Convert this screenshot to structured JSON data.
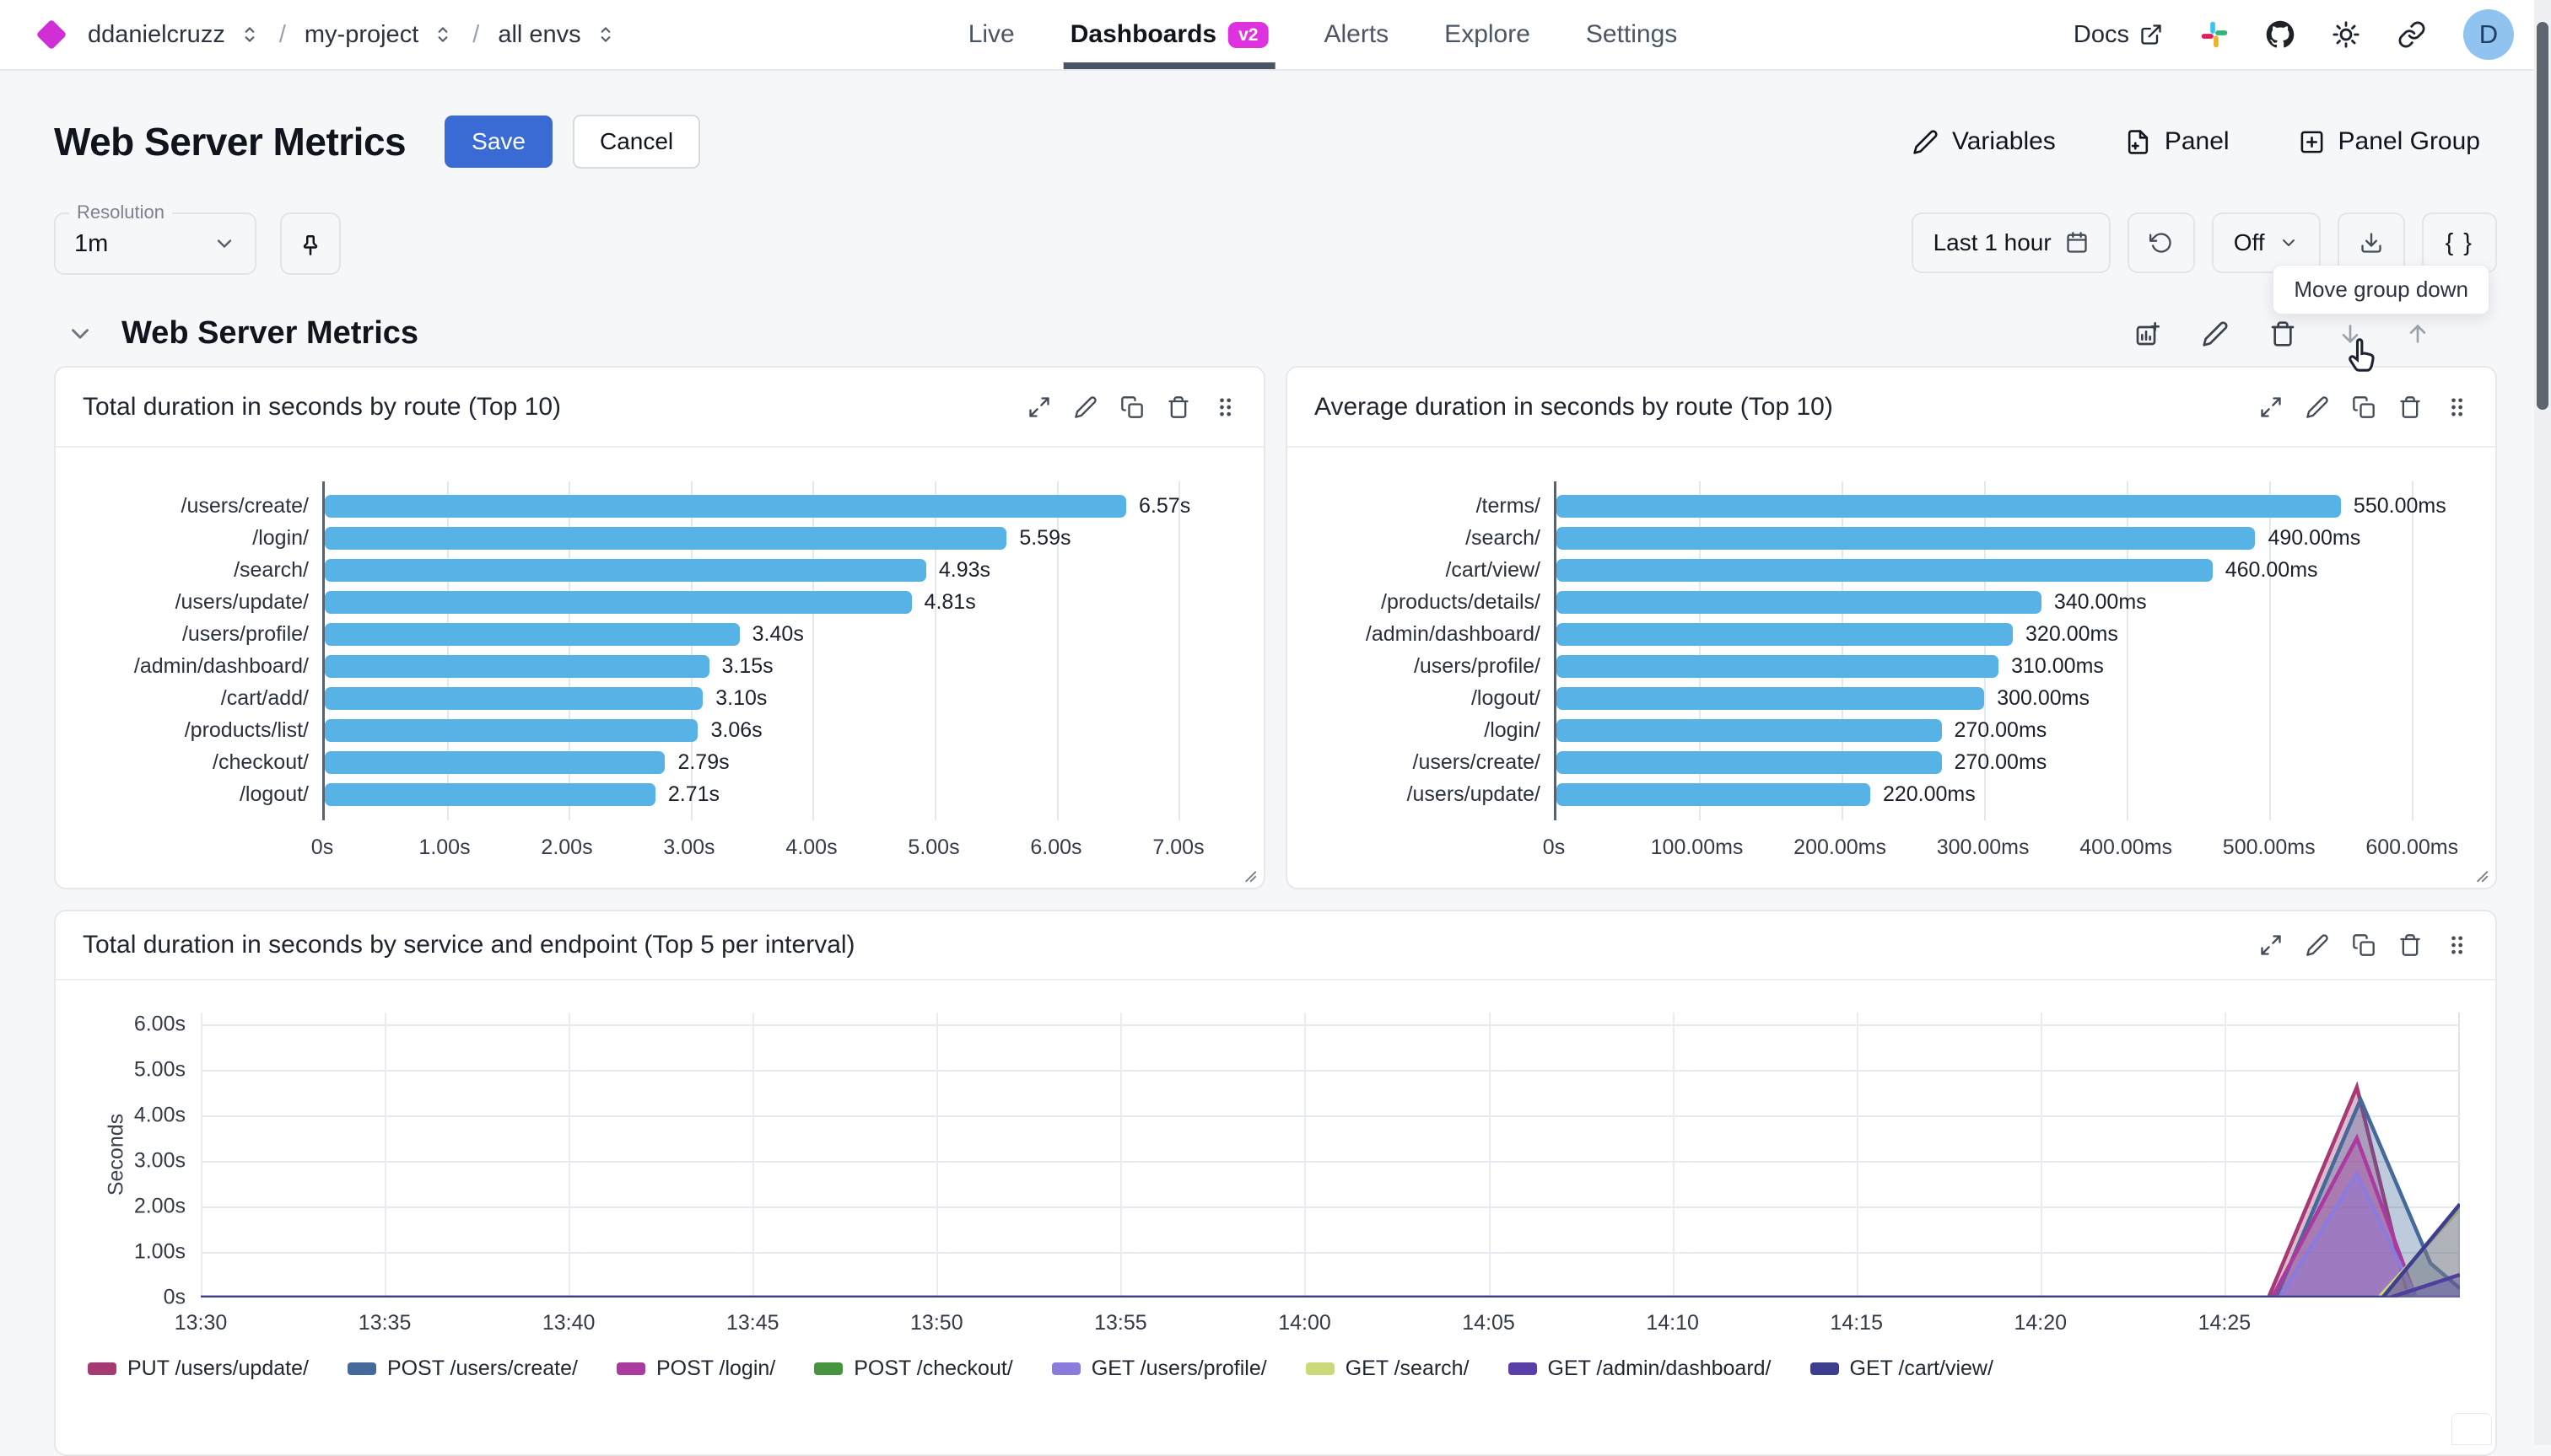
{
  "topbar": {
    "breadcrumb": {
      "org": "ddanielcruzz",
      "project": "my-project",
      "env": "all envs",
      "separator": "/"
    },
    "tabs": [
      {
        "label": "Live",
        "active": false
      },
      {
        "label": "Dashboards",
        "active": true,
        "badge": "v2"
      },
      {
        "label": "Alerts",
        "active": false
      },
      {
        "label": "Explore",
        "active": false
      },
      {
        "label": "Settings",
        "active": false
      }
    ],
    "docs_label": "Docs",
    "avatar_initial": "D"
  },
  "header": {
    "title": "Web Server Metrics",
    "save_label": "Save",
    "cancel_label": "Cancel",
    "actions": [
      {
        "label": "Variables",
        "icon": "pencil-icon"
      },
      {
        "label": "Panel",
        "icon": "file-plus-icon"
      },
      {
        "label": "Panel Group",
        "icon": "plus-square-icon"
      }
    ]
  },
  "controls": {
    "resolution_label": "Resolution",
    "resolution_value": "1m",
    "time_range": "Last 1 hour",
    "refresh_value": "Off",
    "code_label": "{ }"
  },
  "tooltip": "Move group down",
  "group": {
    "title": "Web Server Metrics"
  },
  "icon_sets": {
    "topbar_right": [
      "slack-icon",
      "github-icon",
      "sun-icon",
      "link-icon"
    ],
    "panel_toolbar": [
      "expand-icon",
      "edit-icon",
      "copy-icon",
      "delete-icon",
      "drag-icon"
    ],
    "group_toolbar": [
      "add-panel-icon",
      "edit-icon",
      "delete-icon",
      "arrow-down-icon",
      "arrow-up-icon"
    ]
  },
  "colors": {
    "accent_blue": "#3a6bd5",
    "badge_magenta": "#de32de",
    "bar_blue": "#57b2e6"
  },
  "chart_data": [
    {
      "type": "bar",
      "orientation": "horizontal",
      "title": "Total duration in seconds by route (Top 10)",
      "categories": [
        "/users/create/",
        "/login/",
        "/search/",
        "/users/update/",
        "/users/profile/",
        "/admin/dashboard/",
        "/cart/add/",
        "/products/list/",
        "/checkout/",
        "/logout/"
      ],
      "values": [
        6.57,
        5.59,
        4.93,
        4.81,
        3.4,
        3.15,
        3.1,
        3.06,
        2.79,
        2.71
      ],
      "value_labels": [
        "6.57s",
        "5.59s",
        "4.93s",
        "4.81s",
        "3.40s",
        "3.15s",
        "3.10s",
        "3.06s",
        "2.79s",
        "2.71s"
      ],
      "x_ticks": [
        {
          "v": 0,
          "label": "0s"
        },
        {
          "v": 1,
          "label": "1.00s"
        },
        {
          "v": 2,
          "label": "2.00s"
        },
        {
          "v": 3,
          "label": "3.00s"
        },
        {
          "v": 4,
          "label": "4.00s"
        },
        {
          "v": 5,
          "label": "5.00s"
        },
        {
          "v": 6,
          "label": "6.00s"
        },
        {
          "v": 7,
          "label": "7.00s"
        }
      ],
      "xlim": [
        0,
        7.6
      ],
      "bar_color": "#57b2e6",
      "grid": true
    },
    {
      "type": "bar",
      "orientation": "horizontal",
      "title": "Average duration in seconds by route (Top 10)",
      "categories": [
        "/terms/",
        "/search/",
        "/cart/view/",
        "/products/details/",
        "/admin/dashboard/",
        "/users/profile/",
        "/logout/",
        "/login/",
        "/users/create/",
        "/users/update/"
      ],
      "values": [
        550,
        490,
        460,
        340,
        320,
        310,
        300,
        270,
        270,
        220
      ],
      "value_labels": [
        "550.00ms",
        "490.00ms",
        "460.00ms",
        "340.00ms",
        "320.00ms",
        "310.00ms",
        "300.00ms",
        "270.00ms",
        "270.00ms",
        "220.00ms"
      ],
      "x_ticks": [
        {
          "v": 0,
          "label": "0s"
        },
        {
          "v": 100,
          "label": "100.00ms"
        },
        {
          "v": 200,
          "label": "200.00ms"
        },
        {
          "v": 300,
          "label": "300.00ms"
        },
        {
          "v": 400,
          "label": "400.00ms"
        },
        {
          "v": 500,
          "label": "500.00ms"
        },
        {
          "v": 600,
          "label": "600.00ms"
        }
      ],
      "xlim": [
        0,
        650
      ],
      "bar_color": "#57b2e6",
      "grid": true
    },
    {
      "type": "area",
      "title": "Total duration in seconds by service and endpoint (Top 5 per interval)",
      "ylabel": "Seconds",
      "y_ticks": [
        {
          "v": 6,
          "label": "6.00s"
        },
        {
          "v": 5,
          "label": "5.00s"
        },
        {
          "v": 4,
          "label": "4.00s"
        },
        {
          "v": 3,
          "label": "3.00s"
        },
        {
          "v": 2,
          "label": "2.00s"
        },
        {
          "v": 1,
          "label": "1.00s"
        },
        {
          "v": 0,
          "label": "0s"
        }
      ],
      "ylim": [
        0,
        6.26
      ],
      "x_ticks": [
        {
          "m": 0,
          "label": "13:30"
        },
        {
          "m": 5,
          "label": "13:35"
        },
        {
          "m": 10,
          "label": "13:40"
        },
        {
          "m": 15,
          "label": "13:45"
        },
        {
          "m": 20,
          "label": "13:50"
        },
        {
          "m": 25,
          "label": "13:55"
        },
        {
          "m": 30,
          "label": "14:00"
        },
        {
          "m": 35,
          "label": "14:05"
        },
        {
          "m": 40,
          "label": "14:10"
        },
        {
          "m": 45,
          "label": "14:15"
        },
        {
          "m": 50,
          "label": "14:20"
        },
        {
          "m": 55,
          "label": "14:25"
        }
      ],
      "x_domain_minutes": [
        0,
        61.4
      ],
      "x_start_time": "13:30",
      "note": "All series are ~0s across the hour with a spike near 14:29",
      "series": [
        {
          "name": "PUT /users/update/",
          "color": "#a63a72",
          "points": [
            [
              0,
              0
            ],
            [
              56.2,
              0
            ],
            [
              58.6,
              4.62
            ],
            [
              60.0,
              0
            ],
            [
              61.4,
              0
            ]
          ]
        },
        {
          "name": "POST /users/create/",
          "color": "#46699b",
          "points": [
            [
              0,
              0
            ],
            [
              56.4,
              0
            ],
            [
              58.7,
              4.35
            ],
            [
              60.6,
              0.75
            ],
            [
              61.4,
              0.2
            ]
          ]
        },
        {
          "name": "POST /login/",
          "color": "#ab3a9e",
          "points": [
            [
              0,
              0
            ],
            [
              56.3,
              0
            ],
            [
              58.6,
              3.5
            ],
            [
              60.2,
              0
            ],
            [
              61.4,
              0
            ]
          ]
        },
        {
          "name": "POST /checkout/",
          "color": "#46953e",
          "points": [
            [
              0,
              0
            ],
            [
              61.4,
              0
            ]
          ]
        },
        {
          "name": "GET /users/profile/",
          "color": "#8a7bdc",
          "points": [
            [
              0,
              0
            ],
            [
              56.5,
              0
            ],
            [
              58.6,
              2.72
            ],
            [
              60.2,
              0
            ],
            [
              61.4,
              0
            ]
          ]
        },
        {
          "name": "GET /search/",
          "color": "#cdd878",
          "points": [
            [
              0,
              0
            ],
            [
              59.2,
              0
            ],
            [
              61.4,
              1.95
            ]
          ]
        },
        {
          "name": "GET /admin/dashboard/",
          "color": "#5a3fa8",
          "points": [
            [
              0,
              0
            ],
            [
              59.5,
              0
            ],
            [
              61.4,
              0.5
            ]
          ]
        },
        {
          "name": "GET /cart/view/",
          "color": "#3d3e8e",
          "points": [
            [
              0,
              0
            ],
            [
              59.3,
              0
            ],
            [
              61.4,
              2.05
            ]
          ]
        }
      ],
      "legend_position": "bottom",
      "grid": true
    }
  ]
}
